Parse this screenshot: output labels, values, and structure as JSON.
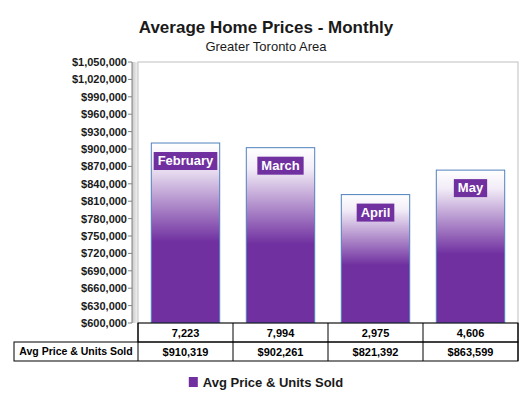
{
  "chart_data": {
    "type": "bar",
    "title": "Average Home Prices - Monthly",
    "subtitle": "Greater Toronto Area",
    "categories": [
      "February",
      "March",
      "April",
      "May"
    ],
    "series": [
      {
        "name": "Avg Price & Units Sold",
        "color": "#7030a0",
        "values": [
          910319,
          902261,
          821392,
          863599
        ],
        "value_labels": [
          "$910,319",
          "$902,261",
          "$821,392",
          "$863,599"
        ],
        "units_sold": [
          7223,
          7994,
          2975,
          4606
        ],
        "units_sold_labels": [
          "7,223",
          "7,994",
          "2,975",
          "4,606"
        ]
      }
    ],
    "ylim": [
      600000,
      1050000
    ],
    "yticks": [
      {
        "value": 600000,
        "label": "$600,000"
      },
      {
        "value": 630000,
        "label": "$630,000"
      },
      {
        "value": 660000,
        "label": "$660,000"
      },
      {
        "value": 690000,
        "label": "$690,000"
      },
      {
        "value": 720000,
        "label": "$720,000"
      },
      {
        "value": 750000,
        "label": "$750,000"
      },
      {
        "value": 780000,
        "label": "$780,000"
      },
      {
        "value": 810000,
        "label": "$810,000"
      },
      {
        "value": 840000,
        "label": "$840,000"
      },
      {
        "value": 870000,
        "label": "$870,000"
      },
      {
        "value": 900000,
        "label": "$900,000"
      },
      {
        "value": 930000,
        "label": "$930,000"
      },
      {
        "value": 960000,
        "label": "$960,000"
      },
      {
        "value": 990000,
        "label": "$990,000"
      },
      {
        "value": 1020000,
        "label": "$1,020,000"
      },
      {
        "value": 1050000,
        "label": "$1,050,000"
      }
    ],
    "grid": false,
    "legend": "bottom"
  }
}
